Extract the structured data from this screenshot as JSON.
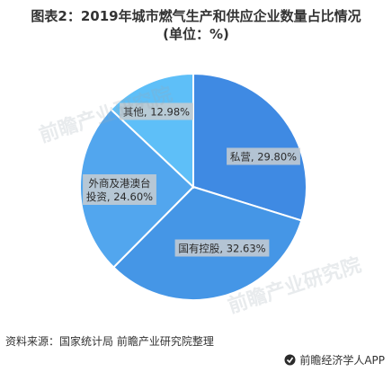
{
  "header": {
    "title": "图表2：2019年城市燃气生产和供应企业数量占比情况",
    "subtitle": "(单位：%)"
  },
  "chart_data": {
    "type": "pie",
    "title": "图表2：2019年城市燃气生产和供应企业数量占比情况",
    "subtitle": "(单位：%)",
    "slices": [
      {
        "label": "私营",
        "value": 29.8,
        "display": "私营, 29.80%",
        "color": "#3f8ae3"
      },
      {
        "label": "国有控股",
        "value": 32.63,
        "display": "国有控股, 32.63%",
        "color": "#4596e6"
      },
      {
        "label": "外商及港澳台投资",
        "value": 24.6,
        "display": "外商及港澳台\n投资, 24.60%",
        "color": "#52a6ee"
      },
      {
        "label": "其他",
        "value": 12.98,
        "display": "其他, 12.98%",
        "color": "#5ebff8"
      }
    ],
    "legend": "none"
  },
  "footer": {
    "source": "资料来源：国家统计局 前瞻产业研究院整理",
    "brand": "前瞻经济学人APP"
  },
  "watermark": {
    "text": "前瞻产业研究院"
  }
}
